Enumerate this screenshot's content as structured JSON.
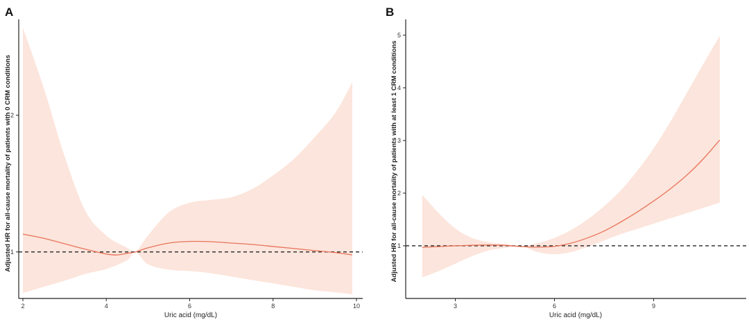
{
  "chart_data": [
    {
      "panel": "A",
      "type": "line",
      "title": "",
      "xlabel": "Uric acid (mg/dL)",
      "ylabel": "Adjusted HR for all-cause mortality of patients with 0 CRM conditions",
      "xlim": [
        1.9,
        10.15
      ],
      "ylim": [
        0.66,
        2.7
      ],
      "x_ticks": [
        2,
        4,
        6,
        8,
        10
      ],
      "y_ticks": [
        1,
        2
      ],
      "x_tick_labels": [
        "2",
        "4",
        "6",
        "8",
        "10"
      ],
      "y_tick_labels": [
        "1",
        "2"
      ],
      "reference_line": 1,
      "colors": {
        "line": "#e8735a",
        "band": "#fce5dc",
        "reference": "#222222"
      },
      "series": [
        {
          "name": "HR",
          "x": [
            2.0,
            2.5,
            3.0,
            3.5,
            4.0,
            4.25,
            4.5,
            4.7,
            5.0,
            5.5,
            6.0,
            6.5,
            7.0,
            7.5,
            8.0,
            8.5,
            9.0,
            9.5,
            9.9
          ],
          "y": [
            1.13,
            1.1,
            1.06,
            1.02,
            0.985,
            0.978,
            0.99,
            1.0,
            1.03,
            1.065,
            1.077,
            1.075,
            1.065,
            1.055,
            1.04,
            1.025,
            1.01,
            0.995,
            0.978
          ]
        },
        {
          "name": "95% CI upper",
          "x": [
            2.0,
            2.5,
            3.0,
            3.5,
            4.0,
            4.5,
            4.7,
            5.0,
            5.5,
            6.0,
            6.5,
            7.0,
            7.5,
            8.0,
            8.5,
            9.0,
            9.5,
            9.9
          ],
          "y": [
            2.64,
            2.2,
            1.7,
            1.3,
            1.12,
            1.03,
            1.0,
            1.12,
            1.29,
            1.36,
            1.38,
            1.4,
            1.46,
            1.56,
            1.68,
            1.84,
            2.02,
            2.24
          ]
        },
        {
          "name": "95% CI lower",
          "x": [
            2.0,
            2.5,
            3.0,
            3.5,
            4.0,
            4.5,
            4.7,
            5.0,
            5.5,
            6.0,
            6.5,
            7.0,
            7.5,
            8.0,
            8.5,
            9.0,
            9.5,
            9.9
          ],
          "y": [
            0.7,
            0.745,
            0.79,
            0.84,
            0.875,
            0.94,
            1.0,
            0.91,
            0.87,
            0.86,
            0.845,
            0.82,
            0.795,
            0.77,
            0.745,
            0.72,
            0.705,
            0.69
          ]
        }
      ]
    },
    {
      "panel": "B",
      "type": "line",
      "title": "",
      "xlabel": "Uric acid (mg/dL)",
      "ylabel": "Adjusted HR for all-cause mortality of patients with at least 1 CRM conditions",
      "xlim": [
        1.5,
        11.8
      ],
      "ylim": [
        0,
        5.3
      ],
      "x_ticks": [
        3,
        6,
        9
      ],
      "y_ticks": [
        1,
        2,
        3,
        4,
        5
      ],
      "x_tick_labels": [
        "3",
        "6",
        "9"
      ],
      "y_tick_labels": [
        "1",
        "2",
        "3",
        "4",
        "5"
      ],
      "reference_line": 1,
      "colors": {
        "line": "#e8735a",
        "band": "#fce5dc",
        "reference": "#222222"
      },
      "series": [
        {
          "name": "HR",
          "x": [
            2.0,
            2.5,
            3.0,
            3.5,
            4.0,
            4.5,
            5.0,
            5.5,
            6.0,
            6.5,
            7.0,
            7.5,
            8.0,
            8.5,
            9.0,
            9.5,
            10.0,
            10.5,
            11.0
          ],
          "y": [
            0.97,
            0.985,
            1.0,
            1.01,
            1.015,
            1.01,
            0.985,
            0.975,
            0.99,
            1.05,
            1.15,
            1.28,
            1.45,
            1.64,
            1.85,
            2.08,
            2.34,
            2.65,
            3.01
          ]
        },
        {
          "name": "95% CI upper",
          "x": [
            2.0,
            2.5,
            3.0,
            3.5,
            4.0,
            4.5,
            5.0,
            5.5,
            6.0,
            6.5,
            7.0,
            7.5,
            8.0,
            8.5,
            9.0,
            9.5,
            10.0,
            10.5,
            11.0
          ],
          "y": [
            1.97,
            1.62,
            1.33,
            1.15,
            1.07,
            1.03,
            1.0,
            1.05,
            1.15,
            1.3,
            1.5,
            1.75,
            2.05,
            2.42,
            2.85,
            3.35,
            3.9,
            4.45,
            4.99
          ]
        },
        {
          "name": "95% CI lower",
          "x": [
            2.0,
            2.5,
            3.0,
            3.5,
            4.0,
            4.5,
            5.0,
            5.5,
            6.0,
            6.5,
            7.0,
            7.5,
            8.0,
            8.5,
            9.0,
            9.5,
            10.0,
            10.5,
            11.0
          ],
          "y": [
            0.4,
            0.52,
            0.66,
            0.8,
            0.91,
            0.96,
            0.99,
            0.88,
            0.84,
            0.88,
            0.98,
            1.1,
            1.22,
            1.32,
            1.42,
            1.52,
            1.62,
            1.72,
            1.82
          ]
        }
      ]
    }
  ]
}
